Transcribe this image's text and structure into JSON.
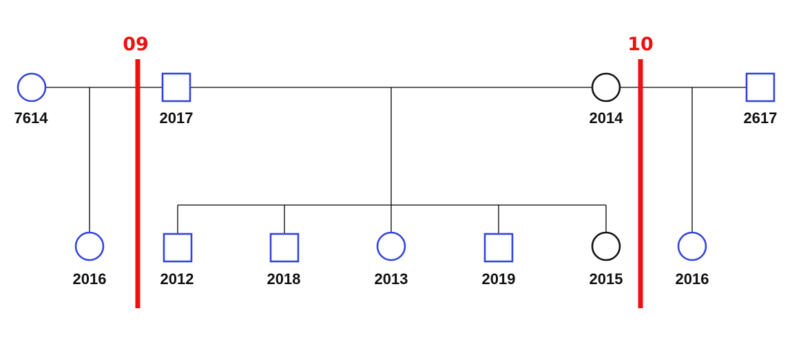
{
  "colors": {
    "symbol_stroke": "#3344dd",
    "affected_fill": "#111111",
    "marker": "#ee1111",
    "line": "#000000",
    "label": "#111111"
  },
  "individuals": [
    {
      "id": "7614",
      "sex": "female",
      "affected": false
    },
    {
      "id": "2017",
      "sex": "male",
      "affected": false
    },
    {
      "id": "2014",
      "sex": "female",
      "affected": true
    },
    {
      "id": "2617",
      "sex": "male",
      "affected": false
    },
    {
      "id": "2016",
      "sex": "female",
      "affected": false
    },
    {
      "id": "2012",
      "sex": "male",
      "affected": false
    },
    {
      "id": "2018",
      "sex": "male",
      "affected": false
    },
    {
      "id": "2013",
      "sex": "female",
      "affected": false
    },
    {
      "id": "2019",
      "sex": "male",
      "affected": false
    },
    {
      "id": "2015",
      "sex": "female",
      "affected": true
    },
    {
      "id": "2016",
      "sex": "female",
      "affected": false
    }
  ],
  "markers": [
    {
      "label": "09"
    },
    {
      "label": "10"
    }
  ]
}
